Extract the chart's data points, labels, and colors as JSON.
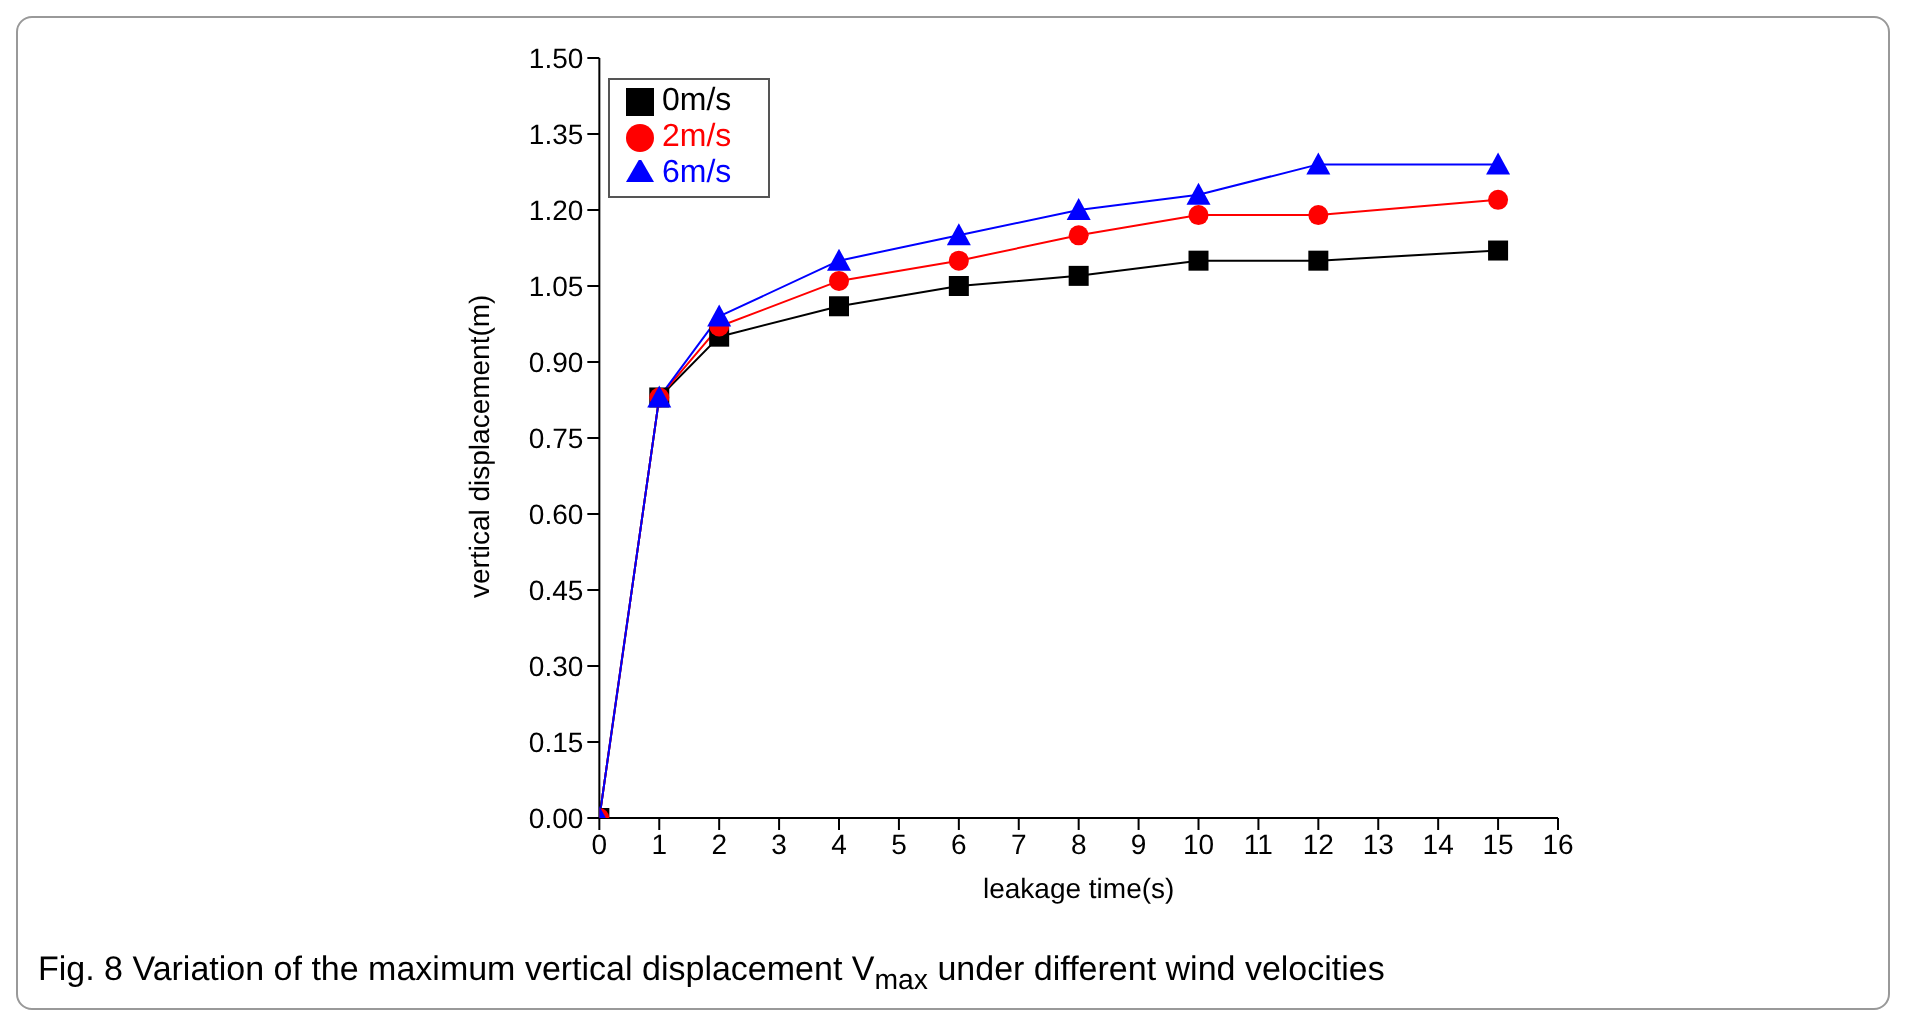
{
  "chart_data": {
    "type": "line",
    "title": "Fig. 8  Variation of the maximum vertical displacement V$_{max}$ under different wind velocities",
    "xlabel": "leakage time(s)",
    "ylabel": "vertical displacement(m)",
    "x": [
      0,
      1,
      2,
      4,
      6,
      8,
      10,
      12,
      15
    ],
    "series": [
      {
        "name": "0m/s",
        "color": "#000000",
        "marker": "square",
        "values": [
          0,
          0.83,
          0.95,
          1.01,
          1.05,
          1.07,
          1.1,
          1.1,
          1.12
        ]
      },
      {
        "name": "2m/s",
        "color": "#ff0000",
        "marker": "circle",
        "values": [
          0,
          0.83,
          0.97,
          1.06,
          1.1,
          1.15,
          1.19,
          1.19,
          1.22
        ]
      },
      {
        "name": "6m/s",
        "color": "#0000ff",
        "marker": "triangle",
        "values": [
          0,
          0.83,
          0.99,
          1.1,
          1.15,
          1.2,
          1.23,
          1.29,
          1.29
        ]
      }
    ],
    "xlim": [
      0,
      16
    ],
    "xticks": [
      0,
      1,
      2,
      3,
      4,
      5,
      6,
      7,
      8,
      9,
      10,
      11,
      12,
      13,
      14,
      15,
      16
    ],
    "ylim": [
      0,
      1.5
    ],
    "yticks": [
      {
        "value": 0,
        "label": "0.00"
      },
      {
        "value": 0.15,
        "label": "0.15"
      },
      {
        "value": 0.3,
        "label": "0.30"
      },
      {
        "value": 0.45,
        "label": "0.45"
      },
      {
        "value": 0.6,
        "label": "0.60"
      },
      {
        "value": 0.75,
        "label": "0.75"
      },
      {
        "value": 0.9,
        "label": "0.90"
      },
      {
        "value": 1.05,
        "label": "1.05"
      },
      {
        "value": 1.2,
        "label": "1.20"
      },
      {
        "value": 1.35,
        "label": "1.35"
      },
      {
        "value": 1.5,
        "label": "1.50"
      }
    ],
    "grid": false,
    "legend": "top left",
    "line_style": "solid"
  }
}
